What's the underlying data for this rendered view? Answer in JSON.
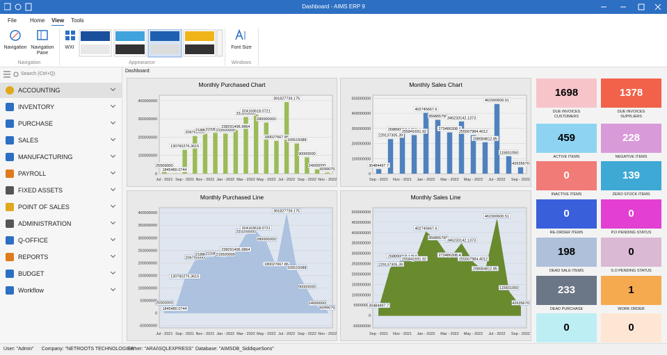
{
  "window": {
    "title": "Dashboard - AIMS ERP 9"
  },
  "ribbon": {
    "tabs": [
      "File",
      "Home",
      "View",
      "Tools"
    ],
    "groups": [
      {
        "label": "Navigation",
        "buttons": [
          "Navigation",
          "Navigation Pane"
        ]
      },
      {
        "label": "Appearance",
        "buttons": [
          "WXI"
        ]
      },
      {
        "label": "Windows",
        "buttons": [
          "Font Size"
        ]
      }
    ]
  },
  "sidebar": {
    "search_placeholder": "Search (Ctrl+Q)",
    "items": [
      "ACCOUNTING",
      "INVENTORY",
      "PURCHASE",
      "SALES",
      "MANUFACTURING",
      "PAYROLL",
      "FIXED ASSETS",
      "POINT OF SALES",
      "ADMINISTRATION",
      "Q-OFFICE",
      "REPORTS",
      "BUDGET",
      "Workflow"
    ]
  },
  "main": {
    "heading": "Dashboard:"
  },
  "chart_data": [
    {
      "type": "bar",
      "title": "Monthly Purchased Chart",
      "color": "#9bbb59",
      "categories": [
        "Jul - 2021",
        null,
        "Sep - 2021",
        null,
        "Nov - 2021",
        null,
        "Jan - 2022",
        null,
        "Mar - 2022",
        null,
        "May - 2022",
        null,
        "Jul - 2022",
        null,
        "Sep - 2022",
        null,
        "Nov - 2022"
      ],
      "values": [
        25500000,
        1845480.0744,
        130760276.3615,
        206700000,
        218800000,
        223300000,
        219500000,
        238291496.9864,
        310200000,
        324163618.0721,
        280000000,
        180027667.86,
        391827739.175,
        165515088,
        90000000,
        24000000,
        6099075
      ],
      "ylim": [
        0,
        430000000
      ],
      "yticks": [
        0,
        100000000,
        200000000,
        300000000,
        400000000
      ],
      "grid": true
    },
    {
      "type": "bar",
      "title": "Monthly Sales Chart",
      "color": "#4f81bd",
      "categories": [
        "Sep - 2021",
        null,
        "Nov - 2021",
        null,
        "Jan - 2022",
        null,
        "Mar - 2022",
        null,
        "May - 2022",
        null,
        "Jul - 2022",
        null,
        "Sep - 2022"
      ],
      "values": [
        30484497.7,
        229137305.39,
        268890018.1464,
        255841691.92,
        402745667.6,
        356865790,
        273486308.4,
        346233142.1373,
        255567984.4012,
        208084812.85,
        461500600.51,
        115831050,
        42635670
      ],
      "ylim": [
        0,
        520000000
      ],
      "yticks": [
        0,
        100000000,
        200000000,
        300000000,
        400000000,
        500000000
      ],
      "grid": true
    },
    {
      "type": "area",
      "title": "Monthly Purchased Line",
      "color": "#a7bedd",
      "categories": [
        "Jul - 2021",
        null,
        "Sep - 2021",
        null,
        "Nov - 2021",
        null,
        "Jan - 2022",
        null,
        "Mar - 2022",
        null,
        "May - 2022",
        null,
        "Jul - 2022",
        null,
        "Sep - 2022",
        null,
        "Nov - 2022"
      ],
      "values": [
        25500000,
        1845480.0744,
        130760276.3615,
        206700000,
        218800000,
        223300000,
        219500000,
        238291496.9864,
        310200000,
        324163618.0721,
        280000000,
        180027667.86,
        391827739.175,
        165515088,
        90000000,
        24000000,
        6099075
      ],
      "ylim": [
        -60000000,
        420000000
      ],
      "yticks": [
        -50000000,
        0,
        50000000,
        100000000,
        150000000,
        200000000,
        250000000,
        300000000,
        350000000,
        400000000
      ],
      "grid": true
    },
    {
      "type": "area",
      "title": "Monthly Sales Line",
      "color": "#6a8a2e",
      "categories": [
        "Sep - 2021",
        null,
        "Nov - 2021",
        null,
        "Jan - 2022",
        null,
        "Mar - 2022",
        null,
        "May - 2022",
        null,
        "Jul - 2022",
        null,
        "Sep - 2022"
      ],
      "values": [
        30484497.7,
        229137305.39,
        268890018.1464,
        255841691.92,
        402745667.6,
        356865790,
        273486308.4,
        346233142.1373,
        255567984.4012,
        208084812.85,
        461500600.51,
        115831050,
        42635670
      ],
      "ylim": [
        -60000000,
        520000000
      ],
      "yticks": [
        -50000000,
        0,
        50000000,
        100000000,
        150000000,
        200000000,
        250000000,
        300000000,
        350000000,
        400000000,
        450000000,
        500000000
      ],
      "grid": true
    }
  ],
  "tiles": [
    {
      "value": 1698,
      "label": "DUE INVOICES CUSTOMERS",
      "color": "#f7c4ca",
      "text_color": "#000000"
    },
    {
      "value": 1378,
      "label": "DUE INVOICES SUPPLIERS",
      "color": "#f2614a",
      "text_color": "#ffffff"
    },
    {
      "value": 459,
      "label": "ACTIVE ITEMS",
      "color": "#8ed4f2",
      "text_color": "#000000"
    },
    {
      "value": 228,
      "label": "NEGATIVE ITEMS",
      "color": "#d99ad9",
      "text_color": "#ffffff"
    },
    {
      "value": 0,
      "label": "INACTIVE ITEMS",
      "color": "#f07b77",
      "text_color": "#ffffff"
    },
    {
      "value": 139,
      "label": "ZERO STOCK ITEMS",
      "color": "#3ea9d5",
      "text_color": "#ffffff"
    },
    {
      "value": 0,
      "label": "RE-ORDER ITEMS",
      "color": "#3a5fdb",
      "text_color": "#ffffff"
    },
    {
      "value": 0,
      "label": "P.O PENDING STATUS",
      "color": "#e33fd2",
      "text_color": "#ffffff"
    },
    {
      "value": 198,
      "label": "DEAD SALE ITEMS",
      "color": "#aec0da",
      "text_color": "#000000"
    },
    {
      "value": 0,
      "label": "S.O PENDING STATUS",
      "color": "#dab9d4",
      "text_color": "#000000"
    },
    {
      "value": 233,
      "label": "DEAD PURCHASE",
      "color": "#6b7686",
      "text_color": "#ffffff"
    },
    {
      "value": 1,
      "label": "WORK ORDER",
      "color": "#f5aa50",
      "text_color": "#000000"
    },
    {
      "value": 0,
      "color": "#bdeef3",
      "text_color": "#000000"
    },
    {
      "value": 0,
      "color": "#fde7d4",
      "text_color": "#000000"
    }
  ],
  "status_bar": {
    "items": [
      "User: \"Admin\"",
      "Company: \"NETROOTS TECHNOLOGIES\"",
      "Server: \"ARAI\\SQLEXPRESS\"",
      "Database: \"AIMSDB_SiddiqueSons\""
    ]
  }
}
